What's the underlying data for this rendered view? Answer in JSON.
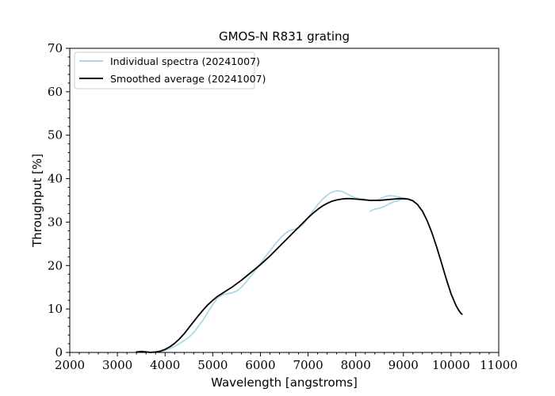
{
  "chart_data": {
    "type": "line",
    "title": "GMOS-N R831 grating",
    "xlabel": "Wavelength [angstroms]",
    "ylabel": "Throughput [%]",
    "xlim": [
      2000,
      11000
    ],
    "ylim": [
      0,
      70
    ],
    "xticks": [
      2000,
      3000,
      4000,
      5000,
      6000,
      7000,
      8000,
      9000,
      10000,
      11000
    ],
    "yticks": [
      0,
      10,
      20,
      30,
      40,
      50,
      60,
      70
    ],
    "grid": false,
    "legend_position": "top-left",
    "series": [
      {
        "name": "Individual spectra (20241007)",
        "color": "#add8e6",
        "segments": [
          [
            [
              3400,
              0.1
            ],
            [
              3500,
              0.3
            ],
            [
              3600,
              0.2
            ],
            [
              3700,
              0.1
            ],
            [
              3800,
              0.1
            ],
            [
              3900,
              0.2
            ],
            [
              4000,
              0.5
            ],
            [
              4100,
              0.9
            ],
            [
              4200,
              1.4
            ],
            [
              4300,
              2.0
            ],
            [
              4400,
              2.7
            ],
            [
              4500,
              3.5
            ],
            [
              4600,
              4.6
            ],
            [
              4700,
              6.0
            ],
            [
              4800,
              7.5
            ],
            [
              4900,
              9.3
            ],
            [
              5000,
              11.0
            ],
            [
              5100,
              12.5
            ],
            [
              5200,
              13.3
            ],
            [
              5300,
              13.5
            ],
            [
              5400,
              13.7
            ],
            [
              5500,
              14.1
            ],
            [
              5600,
              15.0
            ],
            [
              5700,
              16.2
            ],
            [
              5800,
              17.6
            ],
            [
              5900,
              19.0
            ],
            [
              6000,
              20.5
            ],
            [
              6100,
              22.0
            ],
            [
              6200,
              23.4
            ],
            [
              6300,
              24.8
            ],
            [
              6400,
              26.1
            ],
            [
              6500,
              27.2
            ],
            [
              6600,
              28.0
            ],
            [
              6700,
              28.3
            ],
            [
              6800,
              28.6
            ],
            [
              6900,
              29.5
            ],
            [
              7000,
              31.0
            ],
            [
              7100,
              32.5
            ],
            [
              7200,
              34.0
            ],
            [
              7300,
              35.2
            ],
            [
              7400,
              36.2
            ],
            [
              7500,
              36.9
            ],
            [
              7600,
              37.2
            ],
            [
              7700,
              37.1
            ],
            [
              7800,
              36.6
            ],
            [
              7900,
              36.0
            ],
            [
              8000,
              35.6
            ],
            [
              8100,
              35.4
            ],
            [
              8200,
              35.2
            ],
            [
              8300,
              35.0
            ],
            [
              8400,
              35.0
            ],
            [
              8500,
              35.3
            ],
            [
              8600,
              35.8
            ],
            [
              8700,
              36.1
            ],
            [
              8800,
              36.0
            ],
            [
              8900,
              35.8
            ],
            [
              9000,
              35.5
            ],
            [
              9100,
              35.3
            ]
          ],
          [
            [
              8300,
              32.5
            ],
            [
              8400,
              33.0
            ],
            [
              8500,
              33.2
            ],
            [
              8600,
              33.6
            ],
            [
              8700,
              34.2
            ],
            [
              8800,
              34.7
            ],
            [
              8900,
              35.0
            ],
            [
              9000,
              35.3
            ],
            [
              9100,
              35.3
            ],
            [
              9200,
              35.0
            ]
          ]
        ]
      },
      {
        "name": "Smoothed average (20241007)",
        "color": "#000000",
        "segments": [
          [
            [
              3400,
              0.1
            ],
            [
              3500,
              0.2
            ],
            [
              3600,
              0.1
            ],
            [
              3700,
              0.0
            ],
            [
              3800,
              0.1
            ],
            [
              3900,
              0.3
            ],
            [
              4000,
              0.7
            ],
            [
              4100,
              1.3
            ],
            [
              4200,
              2.1
            ],
            [
              4300,
              3.1
            ],
            [
              4400,
              4.3
            ],
            [
              4500,
              5.7
            ],
            [
              4600,
              7.1
            ],
            [
              4700,
              8.5
            ],
            [
              4800,
              9.8
            ],
            [
              4900,
              11.0
            ],
            [
              5000,
              12.0
            ],
            [
              5100,
              12.9
            ],
            [
              5200,
              13.6
            ],
            [
              5300,
              14.3
            ],
            [
              5400,
              15.0
            ],
            [
              5500,
              15.8
            ],
            [
              5600,
              16.6
            ],
            [
              5700,
              17.5
            ],
            [
              5800,
              18.4
            ],
            [
              5900,
              19.3
            ],
            [
              6000,
              20.2
            ],
            [
              6100,
              21.2
            ],
            [
              6200,
              22.2
            ],
            [
              6300,
              23.3
            ],
            [
              6400,
              24.4
            ],
            [
              6500,
              25.5
            ],
            [
              6600,
              26.6
            ],
            [
              6700,
              27.7
            ],
            [
              6800,
              28.8
            ],
            [
              6900,
              29.9
            ],
            [
              7000,
              31.0
            ],
            [
              7100,
              32.0
            ],
            [
              7200,
              32.9
            ],
            [
              7300,
              33.7
            ],
            [
              7400,
              34.3
            ],
            [
              7500,
              34.8
            ],
            [
              7600,
              35.1
            ],
            [
              7700,
              35.3
            ],
            [
              7800,
              35.4
            ],
            [
              7900,
              35.4
            ],
            [
              8000,
              35.3
            ],
            [
              8100,
              35.2
            ],
            [
              8200,
              35.1
            ],
            [
              8300,
              35.0
            ],
            [
              8400,
              35.0
            ],
            [
              8500,
              35.0
            ],
            [
              8600,
              35.1
            ],
            [
              8700,
              35.2
            ],
            [
              8800,
              35.3
            ],
            [
              8900,
              35.4
            ],
            [
              9000,
              35.4
            ],
            [
              9100,
              35.3
            ],
            [
              9200,
              34.9
            ],
            [
              9300,
              34.0
            ],
            [
              9400,
              32.5
            ],
            [
              9500,
              30.3
            ],
            [
              9600,
              27.5
            ],
            [
              9700,
              24.2
            ],
            [
              9800,
              20.6
            ],
            [
              9900,
              16.9
            ],
            [
              10000,
              13.5
            ],
            [
              10100,
              10.9
            ],
            [
              10150,
              9.9
            ],
            [
              10200,
              9.1
            ],
            [
              10230,
              8.8
            ]
          ]
        ]
      }
    ]
  }
}
